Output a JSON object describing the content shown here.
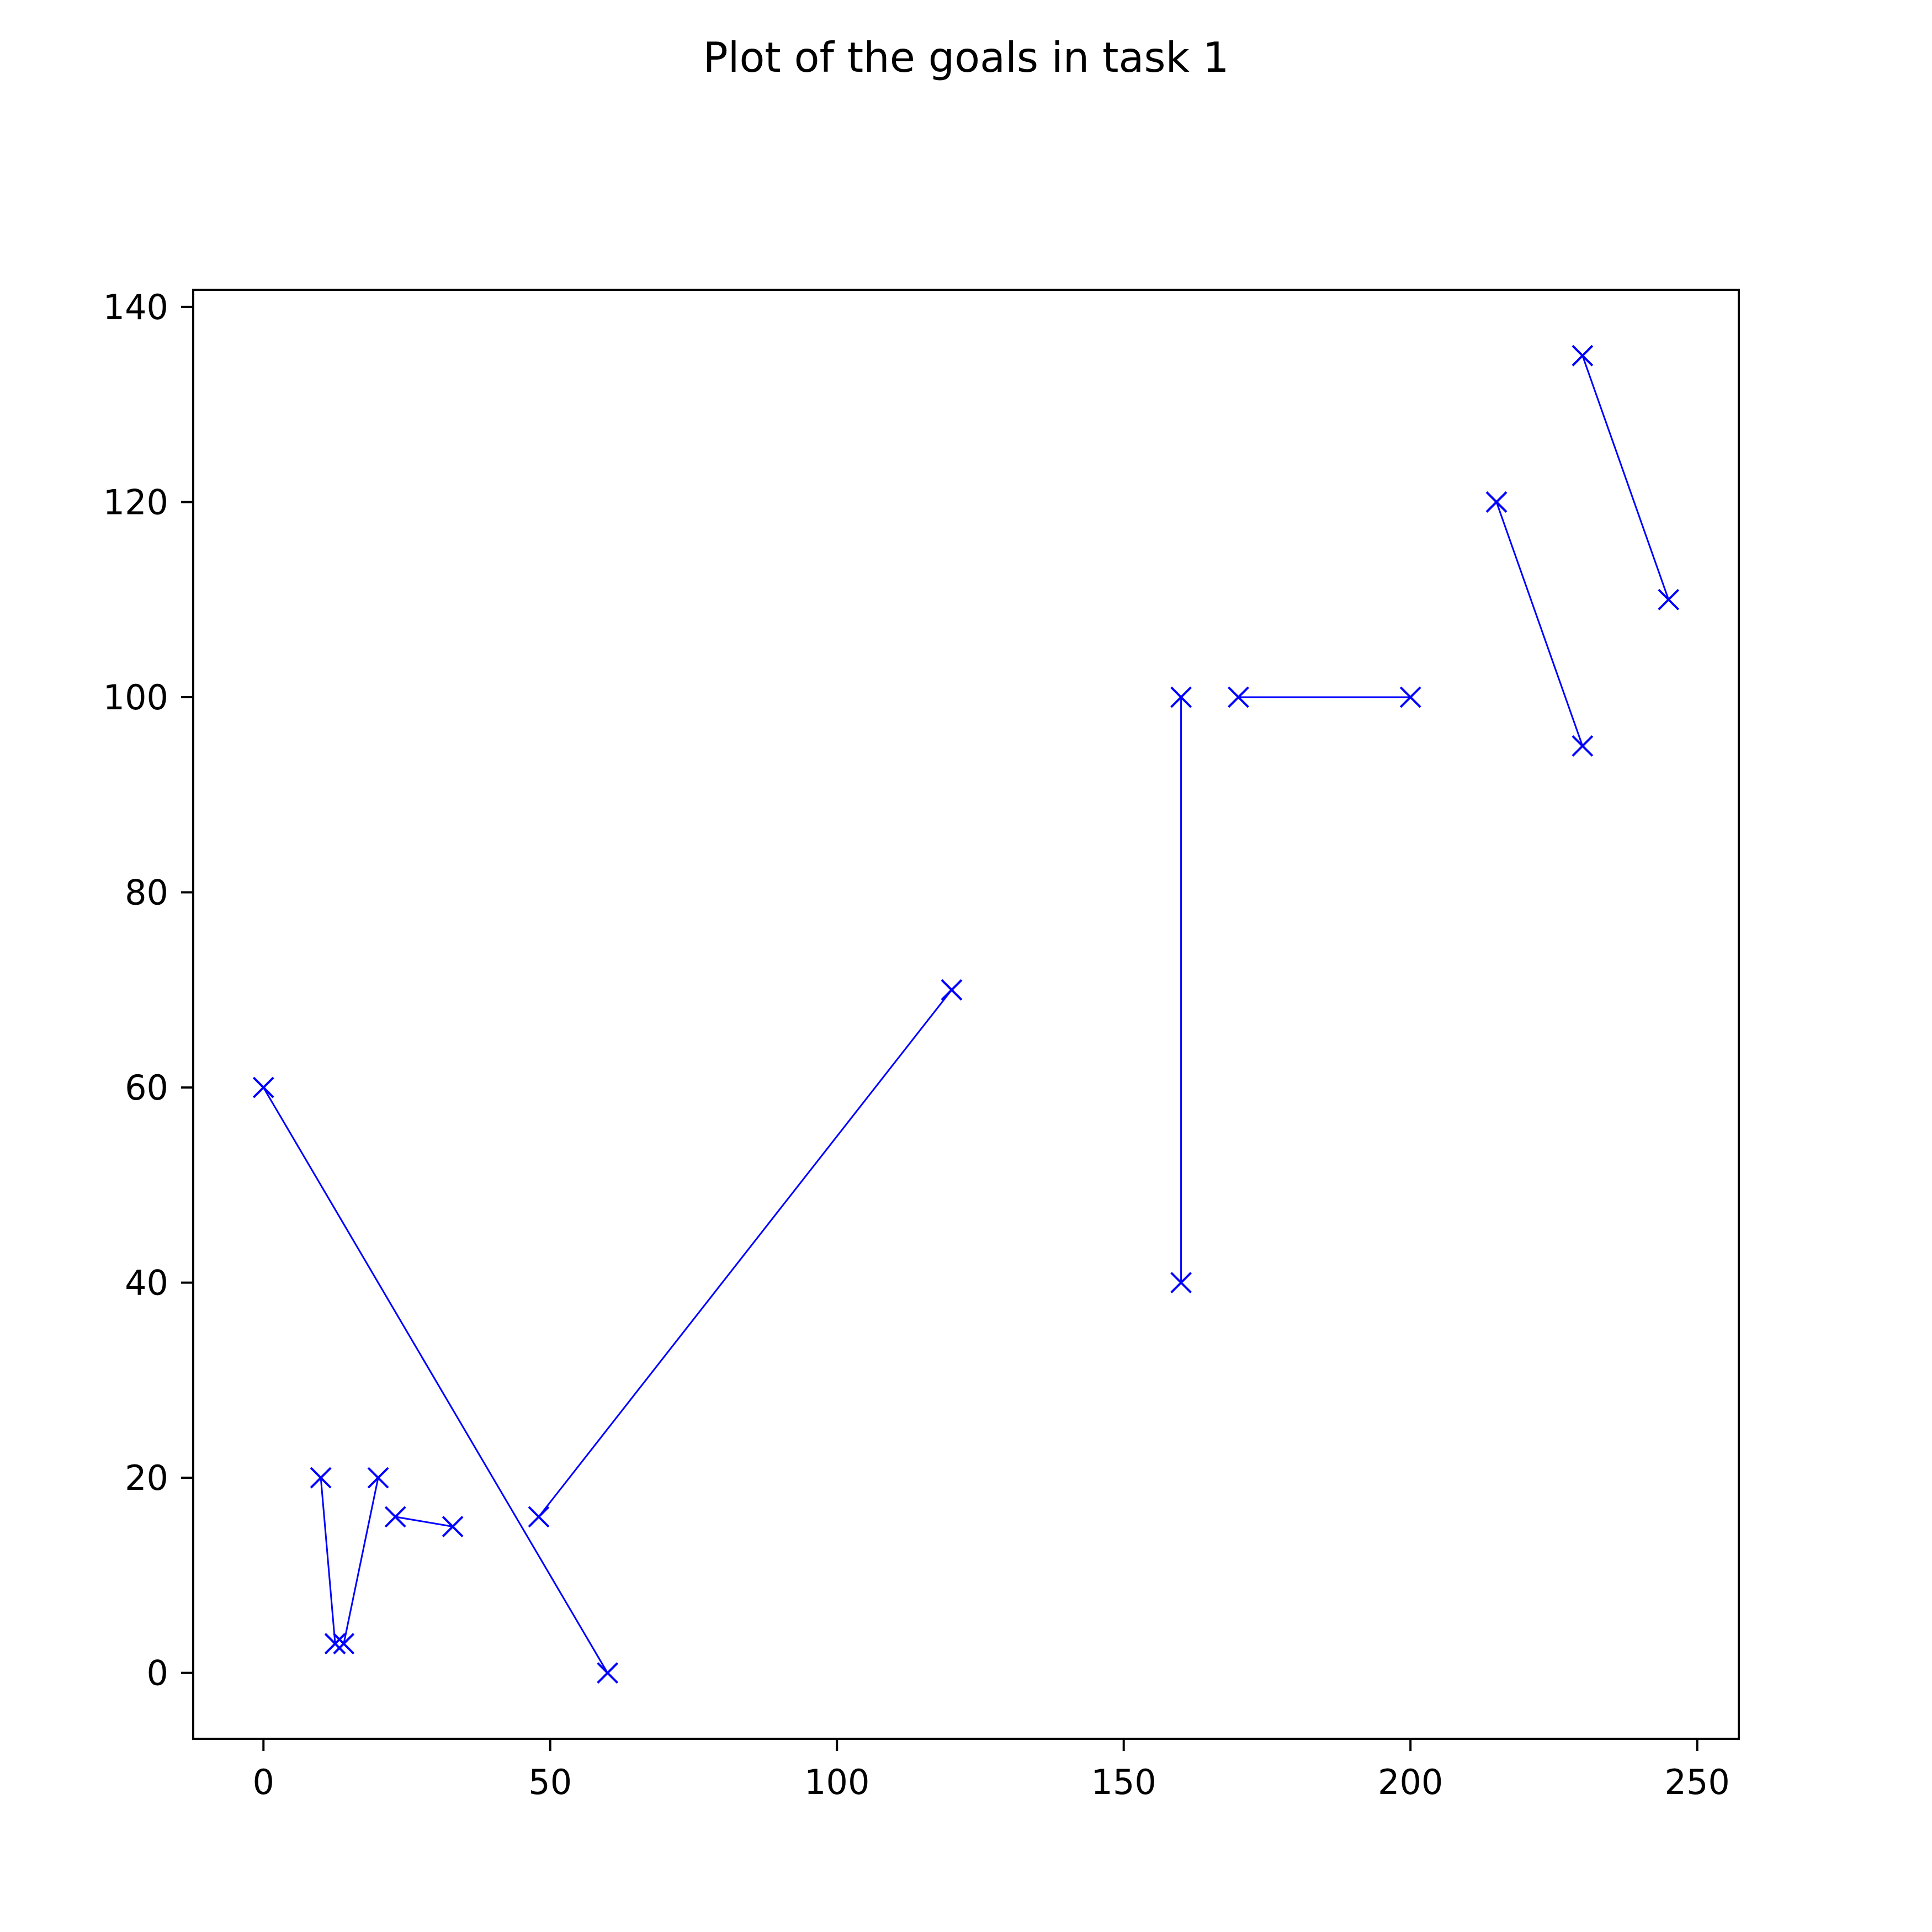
{
  "chart_data": {
    "type": "line",
    "title": "Plot of the goals in task 1",
    "xlabel": "",
    "ylabel": "",
    "xlim": [
      -12.25,
      257.25
    ],
    "ylim": [
      -6.75,
      141.75
    ],
    "xticks": [
      0,
      50,
      100,
      150,
      200,
      250
    ],
    "yticks": [
      0,
      20,
      40,
      60,
      80,
      100,
      120,
      140
    ],
    "grid": false,
    "legend": "none",
    "marker": "x",
    "color": "#0000ff",
    "series": [
      {
        "x": [
          0,
          60
        ],
        "y": [
          60,
          0
        ]
      },
      {
        "x": [
          10,
          12.5
        ],
        "y": [
          20,
          3
        ]
      },
      {
        "x": [
          14,
          20
        ],
        "y": [
          3,
          20
        ]
      },
      {
        "x": [
          23,
          33
        ],
        "y": [
          16,
          15
        ]
      },
      {
        "x": [
          48,
          120
        ],
        "y": [
          16,
          70
        ]
      },
      {
        "x": [
          160,
          160
        ],
        "y": [
          40,
          100
        ]
      },
      {
        "x": [
          170,
          200
        ],
        "y": [
          100,
          100
        ]
      },
      {
        "x": [
          215,
          230
        ],
        "y": [
          120,
          95
        ]
      },
      {
        "x": [
          230,
          245
        ],
        "y": [
          135,
          110
        ]
      }
    ]
  }
}
